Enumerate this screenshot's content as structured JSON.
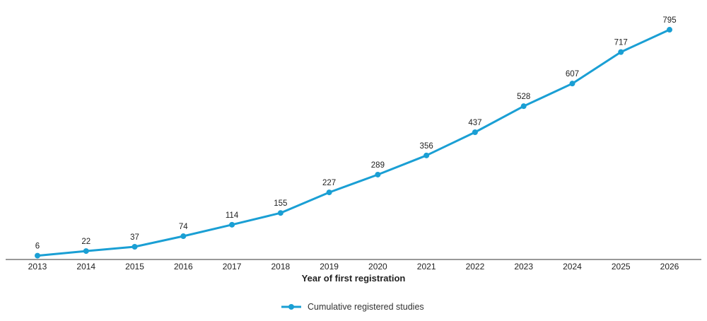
{
  "chart_data": {
    "type": "line",
    "title": "",
    "xlabel": "Year of first registration",
    "ylabel": "",
    "categories": [
      "2013",
      "2014",
      "2015",
      "2016",
      "2017",
      "2018",
      "2019",
      "2020",
      "2021",
      "2022",
      "2023",
      "2024",
      "2025",
      "2026"
    ],
    "series": [
      {
        "name": "Cumulative registered studies",
        "values": [
          6,
          22,
          37,
          74,
          114,
          155,
          227,
          289,
          356,
          437,
          528,
          607,
          717,
          795
        ],
        "color": "#1a9fd4"
      }
    ],
    "ylim": [
      0,
      800
    ],
    "data_labels": true,
    "grid": false,
    "legend_position": "bottom-center"
  }
}
